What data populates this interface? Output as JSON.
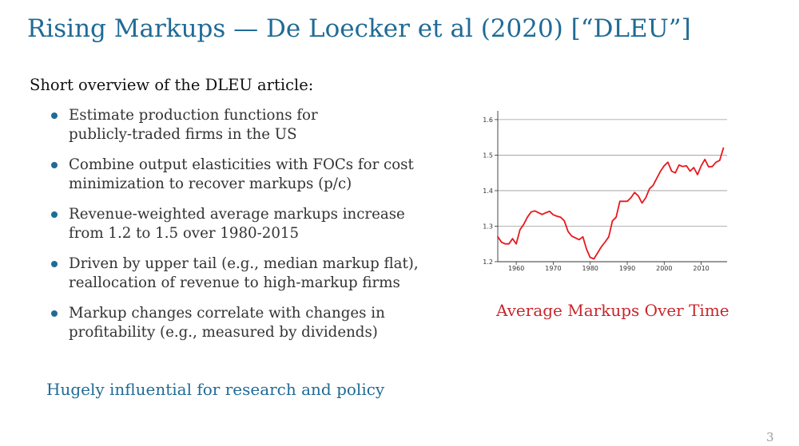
{
  "slide": {
    "title": "Rising Markups — De Loecker et al (2020) [“DLEU”]",
    "intro": "Short overview of the DLEU article:",
    "bullets": [
      {
        "line1": "Estimate production functions for",
        "line2": "publicly-traded firms in the US"
      },
      {
        "line1": "Combine output elasticities with FOCs for cost",
        "line2": "minimization to recover markups (p/c)"
      },
      {
        "line1": "Revenue-weighted average markups increase",
        "line2": "from 1.2 to 1.5 over 1980-2015"
      },
      {
        "line1": "Driven by upper tail (e.g., median markup flat),",
        "line2": "reallocation of revenue to high-markup firms"
      },
      {
        "line1": "Markup changes correlate with changes in",
        "line2": "profitability (e.g., measured by dividends)"
      }
    ],
    "closing": "Hugely influential for research and policy",
    "caption": "Average Markups Over Time",
    "page_number": "3",
    "colors": {
      "title": "#1f6b96",
      "bullet": "#1f6b96",
      "caption": "#c8262b",
      "line": "#e8181e"
    }
  },
  "chart_data": {
    "type": "line",
    "title": "",
    "xlabel": "",
    "ylabel": "",
    "xlim": [
      1955,
      2017
    ],
    "ylim": [
      1.2,
      1.62
    ],
    "grid": "horizontal",
    "x_ticks": [
      1960,
      1970,
      1980,
      1990,
      2000,
      2010
    ],
    "x_tick_labels": [
      "1960",
      "1970",
      "1980",
      "1990",
      "2000",
      "2010"
    ],
    "y_ticks": [
      1.2,
      1.3,
      1.4,
      1.5,
      1.6
    ],
    "y_tick_labels": [
      "1.2",
      "1.3",
      "1.4",
      "1.5",
      "1.6"
    ],
    "series": [
      {
        "name": "",
        "x": [
          1955,
          1956,
          1957,
          1958,
          1959,
          1960,
          1961,
          1962,
          1963,
          1964,
          1965,
          1966,
          1967,
          1968,
          1969,
          1970,
          1971,
          1972,
          1973,
          1974,
          1975,
          1976,
          1977,
          1978,
          1979,
          1980,
          1981,
          1982,
          1983,
          1984,
          1985,
          1986,
          1987,
          1988,
          1989,
          1990,
          1991,
          1992,
          1993,
          1994,
          1995,
          1996,
          1997,
          1998,
          1999,
          2000,
          2001,
          2002,
          2003,
          2004,
          2005,
          2006,
          2007,
          2008,
          2009,
          2010,
          2011,
          2012,
          2013,
          2014,
          2015,
          2016
        ],
        "y": [
          1.27,
          1.255,
          1.25,
          1.25,
          1.265,
          1.25,
          1.29,
          1.305,
          1.325,
          1.34,
          1.343,
          1.338,
          1.333,
          1.338,
          1.342,
          1.332,
          1.328,
          1.325,
          1.315,
          1.285,
          1.272,
          1.267,
          1.262,
          1.27,
          1.235,
          1.212,
          1.208,
          1.225,
          1.242,
          1.255,
          1.27,
          1.315,
          1.325,
          1.37,
          1.37,
          1.37,
          1.38,
          1.395,
          1.385,
          1.365,
          1.38,
          1.405,
          1.415,
          1.435,
          1.455,
          1.47,
          1.48,
          1.455,
          1.45,
          1.472,
          1.468,
          1.47,
          1.455,
          1.465,
          1.445,
          1.47,
          1.488,
          1.467,
          1.468,
          1.48,
          1.485,
          1.52
        ]
      }
    ]
  }
}
